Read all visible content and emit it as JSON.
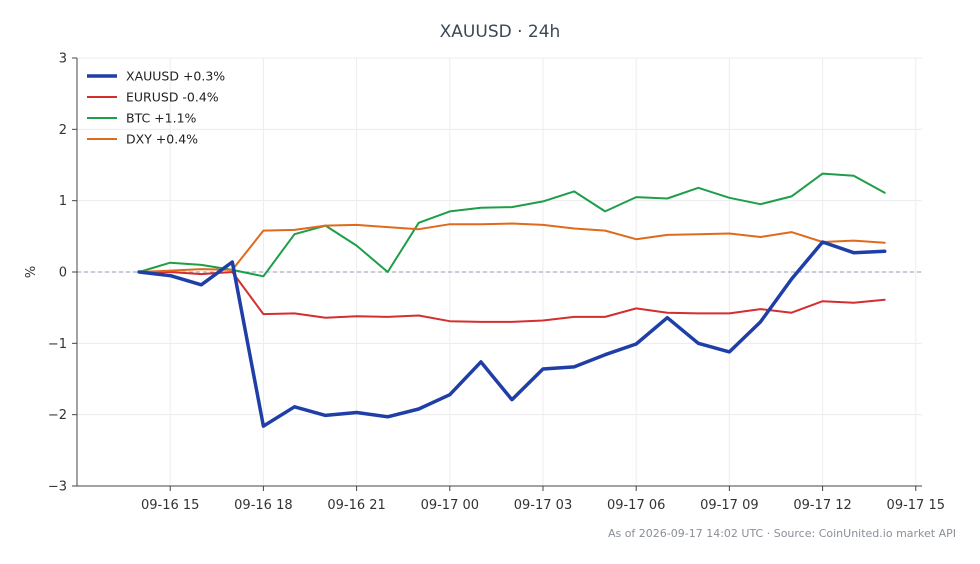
{
  "chart_data": {
    "type": "line",
    "title": "XAUUSD · 24h",
    "xlabel": "",
    "ylabel": "%",
    "x_tick_labels": [
      "09-16 15",
      "09-16 18",
      "09-16 21",
      "09-17 00",
      "09-17 03",
      "09-17 06",
      "09-17 09",
      "09-17 12",
      "09-17 15"
    ],
    "x_tick_hours": [
      15,
      18,
      21,
      24,
      27,
      30,
      33,
      36,
      39
    ],
    "x_range_hours": [
      12,
      39.2
    ],
    "x_hours": [
      14,
      15,
      16,
      17,
      18,
      19,
      20,
      21,
      22,
      23,
      24,
      25,
      26,
      27,
      28,
      29,
      30,
      31,
      32,
      33,
      34,
      35,
      36,
      37,
      38
    ],
    "y_ticks": [
      -3,
      -2,
      -1,
      0,
      1,
      2,
      3
    ],
    "y_tick_labels": [
      "−3",
      "−2",
      "−1",
      "0",
      "1",
      "2",
      "3"
    ],
    "ylim": [
      -3,
      3
    ],
    "grid": true,
    "zero_line": true,
    "legend_position": "top-left",
    "series": [
      {
        "name": "XAUUSD +0.3%",
        "color": "#1f3fa6",
        "emphasis": true,
        "values": [
          0,
          -0.05,
          -0.18,
          0.14,
          -2.16,
          -1.89,
          -2.01,
          -1.97,
          -2.03,
          -1.92,
          -1.72,
          -1.26,
          -1.79,
          -1.36,
          -1.33,
          -1.16,
          -1.01,
          -0.64,
          -1.0,
          -1.12,
          -0.7,
          -0.1,
          0.42,
          0.27,
          0.29
        ]
      },
      {
        "name": "EURUSD -0.4%",
        "color": "#d32f2f",
        "emphasis": false,
        "values": [
          0,
          0.0,
          -0.03,
          0.0,
          -0.59,
          -0.58,
          -0.64,
          -0.62,
          -0.63,
          -0.61,
          -0.69,
          -0.7,
          -0.7,
          -0.68,
          -0.63,
          -0.63,
          -0.51,
          -0.57,
          -0.58,
          -0.58,
          -0.52,
          -0.57,
          -0.41,
          -0.43,
          -0.39
        ]
      },
      {
        "name": "BTC +1.1%",
        "color": "#1e9e48",
        "emphasis": false,
        "values": [
          0,
          0.13,
          0.1,
          0.03,
          -0.06,
          0.53,
          0.65,
          0.37,
          0.0,
          0.69,
          0.85,
          0.9,
          0.91,
          0.99,
          1.13,
          0.85,
          1.05,
          1.03,
          1.18,
          1.04,
          0.95,
          1.06,
          1.38,
          1.35,
          1.11
        ]
      },
      {
        "name": "DXY +0.4%",
        "color": "#e06a1b",
        "emphasis": false,
        "values": [
          0,
          0.02,
          0.04,
          0.03,
          0.58,
          0.59,
          0.65,
          0.66,
          0.63,
          0.6,
          0.67,
          0.67,
          0.68,
          0.66,
          0.61,
          0.58,
          0.46,
          0.52,
          0.53,
          0.54,
          0.49,
          0.56,
          0.42,
          0.44,
          0.41
        ]
      }
    ],
    "footnote": "As of 2026-09-17 14:02 UTC · Source: CoinUnited.io market API"
  }
}
